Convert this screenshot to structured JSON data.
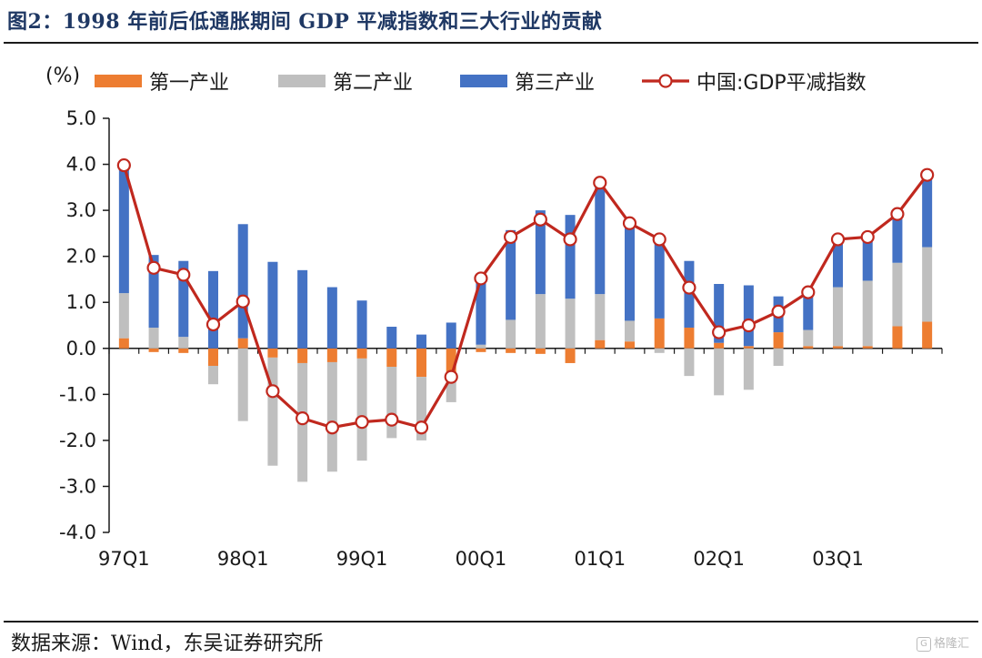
{
  "figure": {
    "title": "图2：1998 年前后低通胀期间 GDP 平减指数和三大行业的贡献",
    "source": "数据来源：Wind，东吴证券研究所",
    "watermark": "格隆汇"
  },
  "chart_data": {
    "type": "bar",
    "stacked": true,
    "unit_label": "(%)",
    "x": [
      "97Q1",
      "97Q2",
      "97Q3",
      "97Q4",
      "98Q1",
      "98Q2",
      "98Q3",
      "98Q4",
      "99Q1",
      "99Q2",
      "99Q3",
      "99Q4",
      "00Q1",
      "00Q2",
      "00Q3",
      "00Q4",
      "01Q1",
      "01Q2",
      "01Q3",
      "01Q4",
      "02Q1",
      "02Q2",
      "02Q3",
      "02Q4",
      "03Q1",
      "03Q2",
      "03Q3",
      "03Q4"
    ],
    "x_tick_labels": [
      "97Q1",
      "98Q1",
      "99Q1",
      "00Q1",
      "01Q1",
      "02Q1",
      "03Q1"
    ],
    "y_tick_labels": [
      "5.0",
      "4.0",
      "3.0",
      "2.0",
      "1.0",
      "0.0",
      "-1.0",
      "-2.0",
      "-3.0",
      "-4.0"
    ],
    "ylim": [
      -4,
      5
    ],
    "legend_position": "top",
    "series": [
      {
        "name": "第一产业",
        "type": "bar",
        "color": "#ed7d31",
        "values": [
          0.22,
          -0.08,
          -0.1,
          -0.38,
          0.22,
          -0.2,
          -0.32,
          -0.3,
          -0.22,
          -0.4,
          -0.62,
          -0.55,
          -0.08,
          -0.1,
          -0.12,
          -0.32,
          0.18,
          0.15,
          0.65,
          0.45,
          0.12,
          0.05,
          0.35,
          0.05,
          0.05,
          0.05,
          0.48,
          0.58
        ]
      },
      {
        "name": "第二产业",
        "type": "bar",
        "color": "#bfbfbf",
        "values": [
          0.98,
          0.45,
          0.25,
          -0.4,
          -1.58,
          -2.35,
          -2.58,
          -2.38,
          -2.22,
          -1.55,
          -1.38,
          -0.62,
          0.08,
          0.62,
          1.18,
          1.08,
          1.0,
          0.45,
          -0.1,
          -0.6,
          -1.02,
          -0.9,
          -0.38,
          0.35,
          1.28,
          1.42,
          1.38,
          1.62
        ]
      },
      {
        "name": "第三产业",
        "type": "bar",
        "color": "#4472c4",
        "values": [
          2.78,
          1.58,
          1.65,
          1.68,
          2.48,
          1.88,
          1.7,
          1.33,
          1.04,
          0.47,
          0.3,
          0.56,
          1.42,
          1.95,
          1.82,
          1.82,
          2.32,
          2.1,
          1.62,
          1.45,
          1.28,
          1.32,
          0.78,
          0.85,
          1.05,
          0.95,
          1.05,
          1.55
        ]
      },
      {
        "name": "中国:GDP平减指数",
        "type": "line",
        "color": "#c0281e",
        "values": [
          3.98,
          1.75,
          1.6,
          0.52,
          1.02,
          -0.93,
          -1.52,
          -1.72,
          -1.6,
          -1.55,
          -1.72,
          -0.62,
          1.52,
          2.42,
          2.8,
          2.37,
          3.6,
          2.72,
          2.37,
          1.32,
          0.35,
          0.5,
          0.8,
          1.22,
          2.37,
          2.42,
          2.92,
          3.77
        ]
      }
    ]
  }
}
